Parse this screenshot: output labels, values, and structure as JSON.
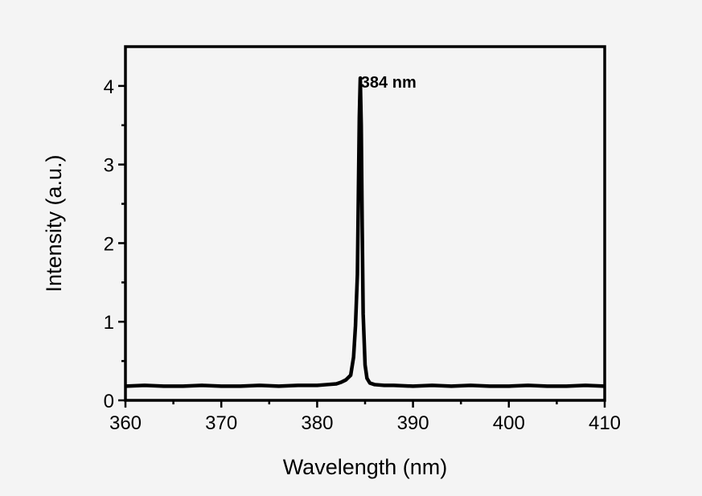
{
  "chart_data": {
    "type": "line",
    "title": "",
    "xlabel": "Wavelength (nm)",
    "ylabel": "Intensity (a.u.)",
    "xlim": [
      360,
      410
    ],
    "ylim": [
      0,
      4.5
    ],
    "xticks": [
      360,
      370,
      380,
      390,
      400,
      410
    ],
    "yticks": [
      0,
      1,
      2,
      3,
      4
    ],
    "grid": false,
    "legend": "none",
    "line_color": "#000000",
    "series": [
      {
        "x": [
          360,
          362,
          364,
          366,
          368,
          370,
          372,
          374,
          376,
          378,
          380,
          381,
          382,
          382.5,
          383,
          383.5,
          383.8,
          384,
          384.2,
          384.3,
          384.4,
          384.5,
          384.6,
          384.7,
          384.8,
          385,
          385.2,
          385.5,
          386,
          387,
          388,
          390,
          392,
          394,
          396,
          398,
          400,
          402,
          404,
          406,
          408,
          410
        ],
        "y": [
          0.18,
          0.19,
          0.18,
          0.18,
          0.19,
          0.18,
          0.18,
          0.19,
          0.18,
          0.19,
          0.19,
          0.2,
          0.21,
          0.23,
          0.26,
          0.32,
          0.55,
          0.95,
          1.6,
          2.6,
          3.6,
          4.1,
          3.5,
          2.2,
          1.1,
          0.45,
          0.28,
          0.22,
          0.2,
          0.19,
          0.19,
          0.18,
          0.19,
          0.18,
          0.19,
          0.18,
          0.18,
          0.19,
          0.18,
          0.18,
          0.19,
          0.18
        ]
      }
    ],
    "annotations": [
      {
        "text": "384 nm",
        "x": 387.5,
        "y": 4.05
      }
    ]
  }
}
